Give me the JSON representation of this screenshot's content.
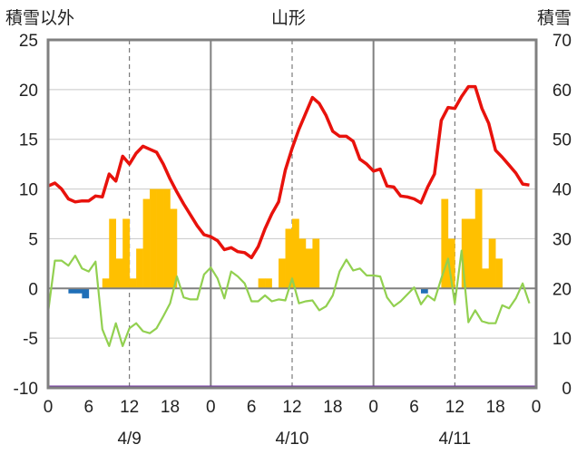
{
  "chart_data": {
    "type": "bar",
    "title": "山形",
    "left_axis_title": "積雪以外",
    "right_axis_title": "積雪",
    "left_ylim": [
      -10,
      25
    ],
    "left_ticks": [
      "25",
      "20",
      "15",
      "10",
      "5",
      "0",
      "-5",
      "-10"
    ],
    "right_ylim": [
      0,
      70
    ],
    "right_ticks": [
      "70",
      "60",
      "50",
      "40",
      "30",
      "20",
      "10",
      "0"
    ],
    "x_tick_labels": [
      "0",
      "6",
      "12",
      "18",
      "0",
      "6",
      "12",
      "18",
      "0",
      "6",
      "12",
      "18",
      "0"
    ],
    "date_labels": [
      "4/9",
      "4/10",
      "4/11"
    ],
    "grid": "dashed vertical lines at hour 12 of each day; solid day separators",
    "colors": {
      "temperature": "#e8120c",
      "wind": "#92d050",
      "precipitation_bar": "#ffc000",
      "negative_bar": "#1f6fb8",
      "snow_depth": "#7030a0",
      "frame": "#808080",
      "zero_line": "#808080"
    },
    "series": [
      {
        "name": "temperature",
        "axis": "left",
        "style": "line",
        "values": [
          10.3,
          10.6,
          10.0,
          9.0,
          8.7,
          8.8,
          8.8,
          9.3,
          9.2,
          11.5,
          10.8,
          13.3,
          12.5,
          13.6,
          14.3,
          14.0,
          13.7,
          12.5,
          11.0,
          9.7,
          8.5,
          7.4,
          6.3,
          5.4,
          5.2,
          4.8,
          3.9,
          4.1,
          3.7,
          3.6,
          3.1,
          4.2,
          6.0,
          7.5,
          8.7,
          11.9,
          14.1,
          16.0,
          17.6,
          19.2,
          18.6,
          17.4,
          15.8,
          15.3,
          15.3,
          14.8,
          13.0,
          12.5,
          11.8,
          12.0,
          10.3,
          10.2,
          9.3,
          9.2,
          9.0,
          8.6,
          10.2,
          11.5,
          16.9,
          18.2,
          18.1,
          19.3,
          20.3,
          20.3,
          18.1,
          16.6,
          13.9,
          13.2,
          12.4,
          11.6,
          10.5,
          10.4
        ]
      },
      {
        "name": "wind",
        "axis": "left",
        "style": "line",
        "values": [
          -2.4,
          2.8,
          2.8,
          2.3,
          3.3,
          2.0,
          1.7,
          2.7,
          -4.1,
          -5.8,
          -3.5,
          -5.8,
          -4.0,
          -3.5,
          -4.3,
          -4.5,
          -4.0,
          -2.8,
          -1.5,
          1.2,
          -0.9,
          -1.1,
          -1.1,
          1.4,
          2.1,
          1.0,
          -1.0,
          1.7,
          1.2,
          0.5,
          -1.3,
          -1.3,
          -0.7,
          -1.3,
          -1.1,
          -1.2,
          1.0,
          -1.5,
          -1.3,
          -1.2,
          -2.2,
          -1.8,
          -0.7,
          1.7,
          2.9,
          1.8,
          2.0,
          1.3,
          1.3,
          1.2,
          -0.9,
          -1.8,
          -1.3,
          -0.6,
          0.1,
          -1.6,
          -0.7,
          -1.2,
          1.0,
          3.0,
          -1.5,
          3.8,
          -3.4,
          -2.2,
          -3.3,
          -3.5,
          -3.5,
          -1.7,
          -2.0,
          -1.0,
          0.5,
          -1.5
        ]
      },
      {
        "name": "precipitation",
        "axis": "left",
        "style": "bar",
        "values": [
          0,
          0,
          0,
          0,
          0,
          0,
          0,
          0,
          0,
          7,
          3,
          7,
          1,
          4,
          9,
          10,
          10,
          10,
          8,
          0,
          0,
          0,
          0,
          0,
          0,
          0,
          0,
          0,
          0,
          0,
          0,
          0,
          0,
          0,
          0,
          0,
          0,
          0,
          0,
          0,
          0,
          0,
          0,
          0,
          0,
          0,
          0,
          0,
          0,
          0,
          0,
          0,
          0,
          0,
          0,
          0,
          0,
          0,
          0,
          0,
          0,
          0,
          0,
          0,
          0,
          0,
          0,
          0,
          0,
          0,
          0,
          0
        ]
      }
    ],
    "extra_bars": [
      {
        "hour": 8,
        "value": 1
      },
      {
        "hour": 31,
        "value": 1
      },
      {
        "hour": 32,
        "value": 1
      },
      {
        "hour": 34,
        "value": 3
      },
      {
        "hour": 35,
        "value": 6
      },
      {
        "hour": 36,
        "value": 7
      },
      {
        "hour": 37,
        "value": 5
      },
      {
        "hour": 38,
        "value": 4
      },
      {
        "hour": 39,
        "value": 5
      },
      {
        "hour": 58,
        "value": 9
      },
      {
        "hour": 59,
        "value": 5
      },
      {
        "hour": 61,
        "value": 7
      },
      {
        "hour": 62,
        "value": 7
      },
      {
        "hour": 63,
        "value": 10
      },
      {
        "hour": 64,
        "value": 2
      },
      {
        "hour": 65,
        "value": 5
      },
      {
        "hour": 66,
        "value": 3
      }
    ],
    "negative_bars": [
      {
        "hour": 3,
        "value": -0.5
      },
      {
        "hour": 4,
        "value": -0.5
      },
      {
        "hour": 5,
        "value": -1.0
      },
      {
        "hour": 55,
        "value": -0.5
      }
    ],
    "snow_depth": {
      "axis": "right",
      "value": 0
    }
  }
}
